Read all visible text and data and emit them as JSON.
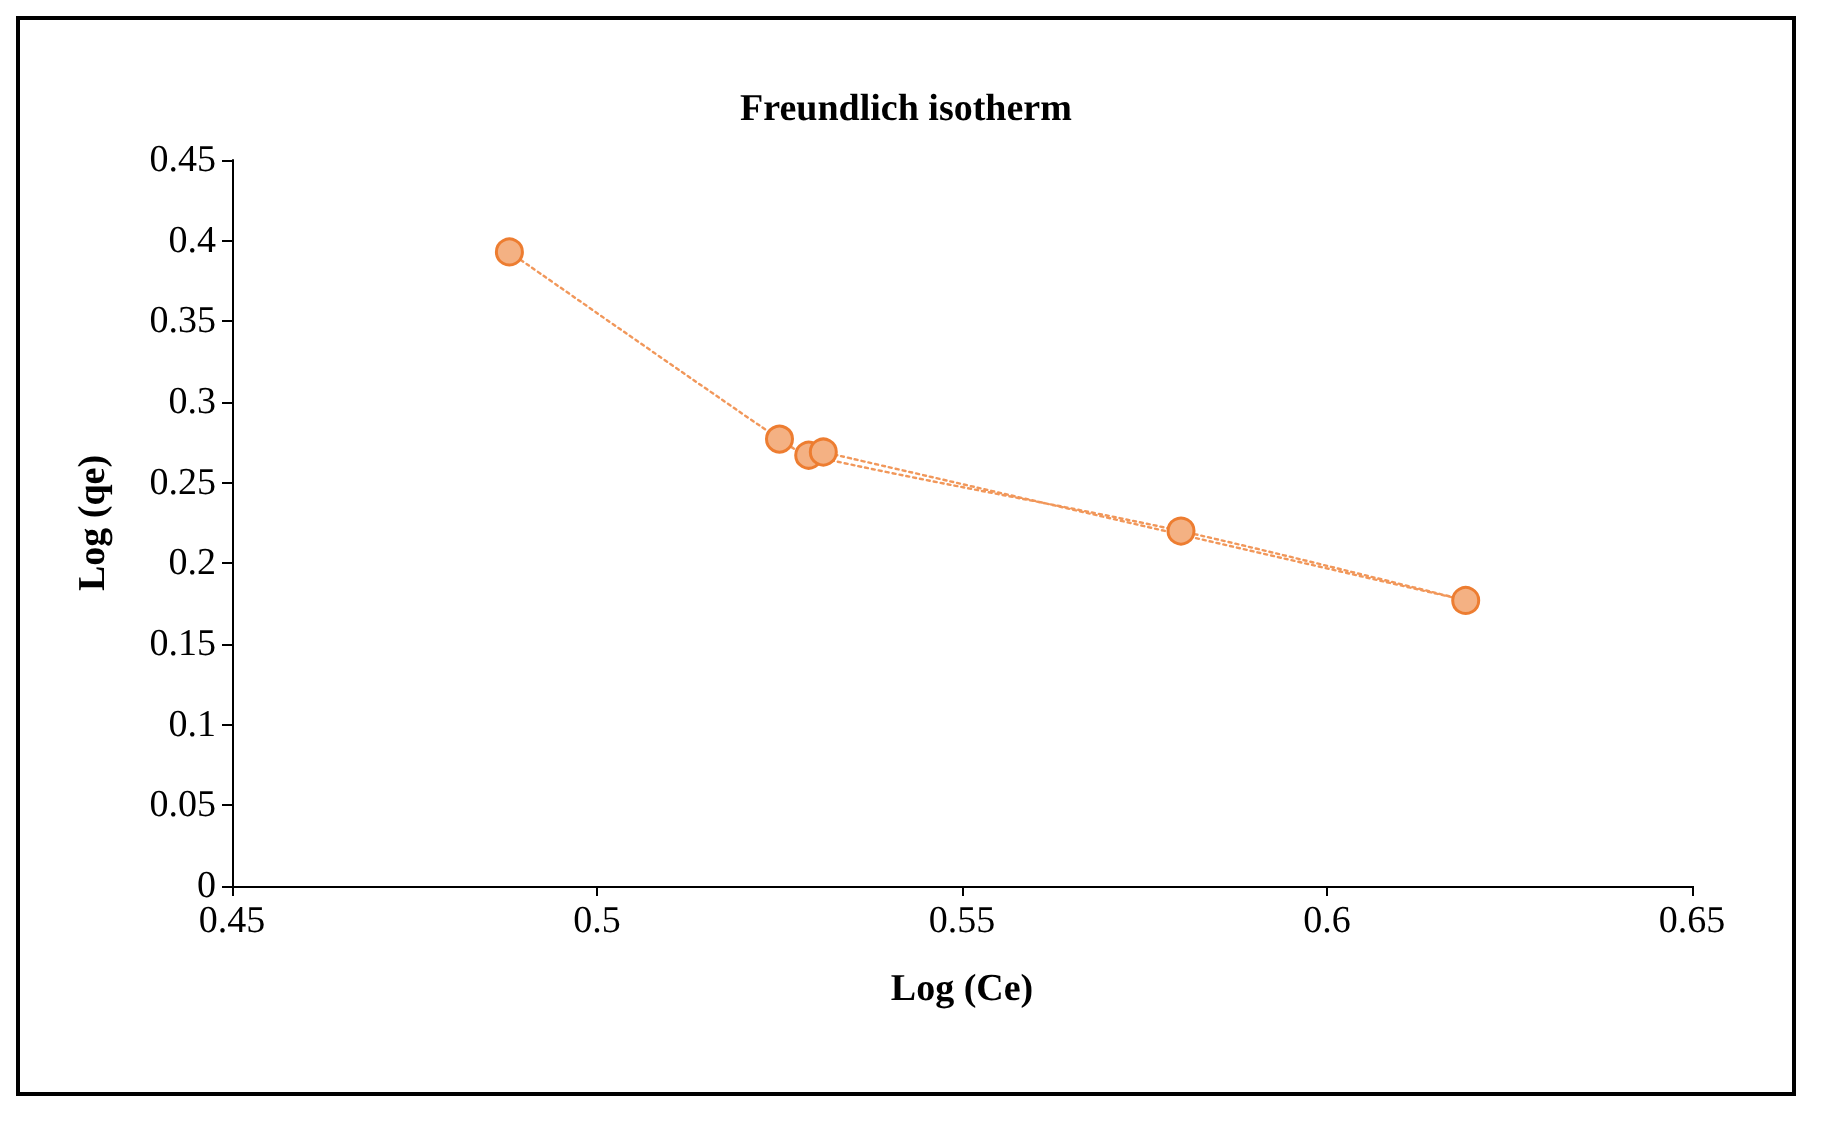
{
  "chart_data": {
    "type": "line",
    "title": "Freundlich isotherm",
    "xlabel": "Log (Ce)",
    "ylabel": "Log (qe)",
    "series": [
      {
        "color": "#ed7d31",
        "x": [
          0.488,
          0.525,
          0.529,
          0.58,
          0.619,
          0.531
        ],
        "values": [
          0.393,
          0.277,
          0.267,
          0.22,
          0.177,
          0.269
        ]
      }
    ],
    "xlim": [
      0.45,
      0.65
    ],
    "xticks": [
      0.45,
      0.5,
      0.55,
      0.6,
      0.65
    ],
    "ylim": [
      0,
      0.45
    ],
    "yticks": [
      0,
      0.05,
      0.1,
      0.15,
      0.2,
      0.25,
      0.3,
      0.35,
      0.4,
      0.45
    ],
    "marker": "circle",
    "line_style": "dotted"
  }
}
